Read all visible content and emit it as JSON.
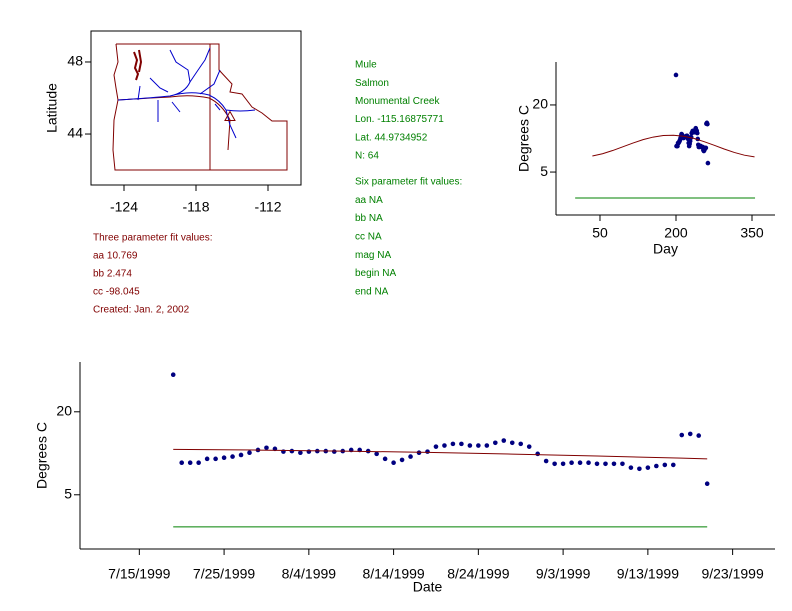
{
  "info": {
    "site_lines": [
      "Mule",
      "Salmon",
      "Monumental Creek",
      "Lon. -115.16875771",
      "Lat. 44.9734952",
      "N: 64"
    ],
    "six_lines": [
      "Six parameter fit values:",
      "aa NA",
      "bb NA",
      "cc NA",
      "mag NA",
      "begin NA",
      "end NA"
    ],
    "three_lines": [
      "Three parameter fit values:",
      "aa 10.769",
      "bb 2.474",
      "cc -98.045",
      "Created:   Jan. 2, 2002"
    ]
  },
  "chart_data": [
    {
      "type": "map",
      "ylabel": "Latitude",
      "xlim": [
        -126.75,
        -109.25
      ],
      "ylim": [
        41.17,
        49.72
      ],
      "xticks": [
        -124,
        -118,
        -112
      ],
      "yticks": [
        44,
        48
      ],
      "site": {
        "x": -115.16875771,
        "y": 44.9734952,
        "color": "#800000"
      }
    },
    {
      "type": "scatter",
      "xlabel": "Day",
      "ylabel": "Degrees C",
      "xlim": [
        -36.8,
        395.4
      ],
      "ylim": [
        -4.6,
        29.6
      ],
      "xticks": [
        50,
        200,
        350
      ],
      "yticks": [
        5,
        20
      ],
      "series": [
        {
          "mode": "markers",
          "color": "#000080",
          "x": [
            200,
            201,
            202,
            203,
            204,
            205,
            206,
            207,
            208,
            209,
            210,
            211,
            212,
            213,
            214,
            215,
            216,
            217,
            218,
            219,
            220,
            221,
            222,
            223,
            224,
            225,
            226,
            227,
            228,
            229,
            230,
            231,
            232,
            233,
            234,
            235,
            236,
            237,
            238,
            239,
            240,
            241,
            242,
            243,
            244,
            245,
            246,
            247,
            248,
            249,
            250,
            251,
            252,
            253,
            254,
            255,
            256,
            257,
            258,
            259,
            260,
            261,
            262,
            263
          ],
          "values": [
            26.7,
            10.8,
            10.8,
            10.8,
            11.5,
            11.5,
            11.7,
            11.9,
            12.2,
            12.6,
            13.1,
            13.5,
            13.3,
            12.8,
            12.9,
            12.6,
            12.8,
            12.9,
            12.9,
            12.8,
            12.9,
            13.1,
            13.1,
            12.9,
            12.4,
            11.5,
            10.8,
            11.3,
            11.9,
            12.6,
            12.8,
            13.7,
            13.9,
            14.2,
            14.2,
            13.9,
            13.9,
            13.9,
            14.4,
            14.8,
            14.4,
            14.2,
            13.7,
            12.4,
            11.1,
            10.6,
            10.6,
            10.8,
            10.8,
            10.8,
            10.6,
            10.6,
            10.6,
            10.6,
            9.9,
            9.7,
            9.9,
            10.2,
            10.4,
            10.4,
            15.8,
            16.0,
            15.7,
            7.0
          ]
        },
        {
          "mode": "lines",
          "color": "#800000",
          "x": [
            35,
            55,
            75,
            95,
            115,
            135,
            155,
            175,
            195,
            215,
            235,
            255,
            275,
            295,
            315,
            335,
            355
          ],
          "values": [
            8.58,
            9.1,
            9.81,
            10.64,
            11.48,
            12.24,
            12.82,
            13.17,
            13.23,
            13.0,
            12.52,
            11.82,
            11.0,
            10.16,
            9.38,
            8.77,
            8.39
          ]
        },
        {
          "mode": "lines",
          "color": "#008000",
          "x": [
            1,
            356
          ],
          "values": [
            -0.8,
            -0.8
          ]
        }
      ]
    },
    {
      "type": "scatter",
      "xlabel": "Date",
      "ylabel": "Degrees C",
      "xlim": [
        "1999-07-08",
        "1999-09-28"
      ],
      "ylim": [
        -4.8,
        29.0
      ],
      "xticks": [
        {
          "value": "1999-07-15",
          "label": "7/15/1999"
        },
        {
          "value": "1999-07-25",
          "label": "7/25/1999"
        },
        {
          "value": "1999-08-04",
          "label": "8/4/1999"
        },
        {
          "value": "1999-08-14",
          "label": "8/14/1999"
        },
        {
          "value": "1999-08-24",
          "label": "8/24/1999"
        },
        {
          "value": "1999-09-03",
          "label": "9/3/1999"
        },
        {
          "value": "1999-09-13",
          "label": "9/13/1999"
        },
        {
          "value": "1999-09-23",
          "label": "9/23/1999"
        }
      ],
      "yticks": [
        5,
        20
      ],
      "series": [
        {
          "mode": "markers",
          "color": "#000080",
          "x": [
            "1999-07-19",
            "1999-07-20",
            "1999-07-21",
            "1999-07-22",
            "1999-07-23",
            "1999-07-24",
            "1999-07-25",
            "1999-07-26",
            "1999-07-27",
            "1999-07-28",
            "1999-07-29",
            "1999-07-30",
            "1999-07-31",
            "1999-08-01",
            "1999-08-02",
            "1999-08-03",
            "1999-08-04",
            "1999-08-05",
            "1999-08-06",
            "1999-08-07",
            "1999-08-08",
            "1999-08-09",
            "1999-08-10",
            "1999-08-11",
            "1999-08-12",
            "1999-08-13",
            "1999-08-14",
            "1999-08-15",
            "1999-08-16",
            "1999-08-17",
            "1999-08-18",
            "1999-08-19",
            "1999-08-20",
            "1999-08-21",
            "1999-08-22",
            "1999-08-23",
            "1999-08-24",
            "1999-08-25",
            "1999-08-26",
            "1999-08-27",
            "1999-08-28",
            "1999-08-29",
            "1999-08-30",
            "1999-08-31",
            "1999-09-01",
            "1999-09-02",
            "1999-09-03",
            "1999-09-04",
            "1999-09-05",
            "1999-09-06",
            "1999-09-07",
            "1999-09-08",
            "1999-09-09",
            "1999-09-10",
            "1999-09-11",
            "1999-09-12",
            "1999-09-13",
            "1999-09-14",
            "1999-09-15",
            "1999-09-16",
            "1999-09-17",
            "1999-09-18",
            "1999-09-19",
            "1999-09-20"
          ],
          "values": [
            26.7,
            10.8,
            10.8,
            10.8,
            11.5,
            11.5,
            11.7,
            11.9,
            12.2,
            12.6,
            13.1,
            13.5,
            13.3,
            12.8,
            12.9,
            12.6,
            12.8,
            12.9,
            12.9,
            12.8,
            12.9,
            13.1,
            13.1,
            12.9,
            12.4,
            11.5,
            10.8,
            11.3,
            11.9,
            12.6,
            12.8,
            13.7,
            13.9,
            14.2,
            14.2,
            13.9,
            13.9,
            13.9,
            14.4,
            14.8,
            14.4,
            14.2,
            13.7,
            12.4,
            11.1,
            10.6,
            10.6,
            10.8,
            10.8,
            10.8,
            10.6,
            10.6,
            10.6,
            10.6,
            9.9,
            9.7,
            9.9,
            10.2,
            10.4,
            10.4,
            15.8,
            16.0,
            15.7,
            7.0
          ]
        },
        {
          "mode": "lines",
          "color": "#800000",
          "x": [
            "1999-07-19",
            "1999-07-29",
            "1999-08-08",
            "1999-08-18",
            "1999-08-28",
            "1999-09-07",
            "1999-09-17",
            "1999-09-20"
          ],
          "values": [
            13.2,
            13.08,
            12.9,
            12.66,
            12.35,
            12.0,
            11.62,
            11.5
          ]
        },
        {
          "mode": "lines",
          "color": "#008000",
          "x": [
            "1999-07-19",
            "1999-09-20"
          ],
          "values": [
            -0.8,
            -0.8
          ]
        }
      ]
    }
  ]
}
